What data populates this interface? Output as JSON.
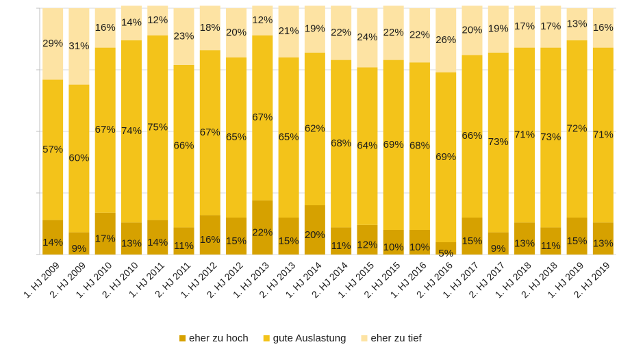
{
  "chart_data": {
    "type": "stacked_bar",
    "categories": [
      "1. HJ 2009",
      "2. HJ 2009",
      "1. HJ 2010",
      "2. HJ 2010",
      "1. HJ 2011",
      "2. HJ 2011",
      "1. HJ 2012",
      "2. HJ 2012",
      "1. HJ 2013",
      "2. HJ 2013",
      "1. HJ 2014",
      "2. HJ 2014",
      "1. HJ 2015",
      "2. HJ 2015",
      "1. HJ 2016",
      "2. HJ 2016",
      "1. HJ 2017",
      "2. HJ 2017",
      "1. HJ 2018",
      "2. HJ 2018",
      "1. HJ 2019",
      "2. HJ 2019"
    ],
    "series": [
      {
        "name": "eher zu hoch",
        "color": "#d6a100",
        "values": [
          14,
          9,
          17,
          13,
          14,
          11,
          16,
          15,
          22,
          15,
          20,
          11,
          12,
          10,
          10,
          5,
          15,
          9,
          13,
          11,
          15,
          13
        ],
        "value_labels": [
          "14%",
          "9%",
          "17%",
          "13%",
          "14%",
          "11%",
          "16%",
          "15%",
          "22%",
          "15%",
          "20%",
          "11%",
          "12%",
          "10%",
          "10%",
          "5%",
          "15%",
          "9%",
          "13%",
          "11%",
          "15%",
          "13%"
        ]
      },
      {
        "name": "gute Auslastung",
        "color": "#f3c31a",
        "values": [
          57,
          60,
          67,
          74,
          75,
          66,
          67,
          65,
          67,
          65,
          62,
          68,
          64,
          69,
          68,
          69,
          66,
          73,
          71,
          73,
          72,
          71
        ],
        "value_labels": [
          "57%",
          "60%",
          "67%",
          "74%",
          "75%",
          "66%",
          "67%",
          "65%",
          "67%",
          "65%",
          "62%",
          "68%",
          "64%",
          "69%",
          "68%",
          "69%",
          "66%",
          "73%",
          "71%",
          "73%",
          "72%",
          "71%"
        ]
      },
      {
        "name": "eher zu tief",
        "color": "#fde3a3",
        "values": [
          29,
          31,
          16,
          14,
          12,
          23,
          18,
          20,
          12,
          21,
          19,
          22,
          24,
          22,
          22,
          26,
          20,
          19,
          17,
          17,
          13,
          16
        ],
        "value_labels": [
          "29%",
          "31%",
          "16%",
          "14%",
          "12%",
          "23%",
          "18%",
          "20%",
          "12%",
          "21%",
          "19%",
          "22%",
          "24%",
          "22%",
          "22%",
          "26%",
          "20%",
          "19%",
          "17%",
          "17%",
          "13%",
          "16%"
        ]
      }
    ],
    "ylim": [
      0,
      100
    ],
    "yticks": [
      0,
      25,
      50,
      75,
      100
    ],
    "grid": true,
    "legend": "bottom"
  }
}
